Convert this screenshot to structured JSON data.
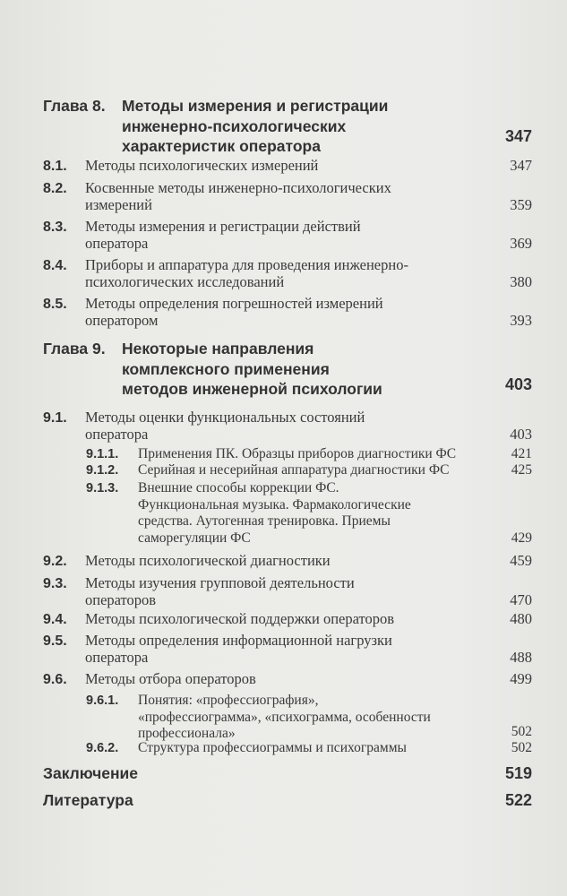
{
  "toc": {
    "chapter8": {
      "label": "Глава 8.",
      "lines": [
        "Методы измерения и регистрации",
        "инженерно-психологических",
        "характеристик оператора"
      ],
      "page": "347"
    },
    "s8_1": {
      "num": "8.1.",
      "lines": [
        "Методы психологических измерений"
      ],
      "page": "347"
    },
    "s8_2": {
      "num": "8.2.",
      "lines": [
        "Косвенные методы инженерно-психологических",
        "измерений"
      ],
      "page": "359"
    },
    "s8_3": {
      "num": "8.3.",
      "lines": [
        "Методы измерения и регистрации действий",
        "оператора"
      ],
      "page": "369"
    },
    "s8_4": {
      "num": "8.4.",
      "lines": [
        "Приборы и аппаратура для проведения инженерно-",
        "психологических исследований"
      ],
      "page": "380"
    },
    "s8_5": {
      "num": "8.5.",
      "lines": [
        "Методы определения погрешностей измерений",
        "оператором"
      ],
      "page": "393"
    },
    "chapter9": {
      "label": "Глава 9.",
      "lines": [
        "Некоторые направления",
        "комплексного применения",
        "методов инженерной психологии"
      ],
      "page": "403"
    },
    "s9_1": {
      "num": "9.1.",
      "lines": [
        "Методы оценки функциональных состояний",
        "оператора"
      ],
      "page": "403"
    },
    "s9_1_1": {
      "num": "9.1.1.",
      "lines": [
        "Применения ПК. Образцы приборов диагностики ФС"
      ],
      "page": "421"
    },
    "s9_1_2": {
      "num": "9.1.2.",
      "lines": [
        "Серийная и несерийная аппаратура диагностики ФС"
      ],
      "page": "425"
    },
    "s9_1_3": {
      "num": "9.1.3.",
      "lines": [
        "Внешние способы коррекции ФС.",
        "Функциональная музыка. Фармакологические",
        "средства. Аутогенная тренировка. Приемы",
        "саморегуляции ФС"
      ],
      "page": "429"
    },
    "s9_2": {
      "num": "9.2.",
      "lines": [
        "Методы психологической диагностики"
      ],
      "page": "459"
    },
    "s9_3": {
      "num": "9.3.",
      "lines": [
        "Методы изучения групповой деятельности",
        "операторов"
      ],
      "page": "470"
    },
    "s9_4": {
      "num": "9.4.",
      "lines": [
        "Методы психологической поддержки операторов"
      ],
      "page": "480"
    },
    "s9_5": {
      "num": "9.5.",
      "lines": [
        "Методы определения информационной нагрузки",
        "оператора"
      ],
      "page": "488"
    },
    "s9_6": {
      "num": "9.6.",
      "lines": [
        "Методы отбора операторов"
      ],
      "page": "499"
    },
    "s9_6_1": {
      "num": "9.6.1.",
      "lines": [
        "Понятия: «профессиография»,",
        "«профессиограмма», «психограмма, особенности",
        "профессионала»"
      ],
      "page": "502"
    },
    "s9_6_2": {
      "num": "9.6.2.",
      "lines": [
        "Структура профессиограммы и психограммы"
      ],
      "page": "502"
    },
    "conclusion": {
      "lines": [
        "Заключение"
      ],
      "page": "519"
    },
    "literature": {
      "lines": [
        "Литература"
      ],
      "page": "522"
    }
  }
}
